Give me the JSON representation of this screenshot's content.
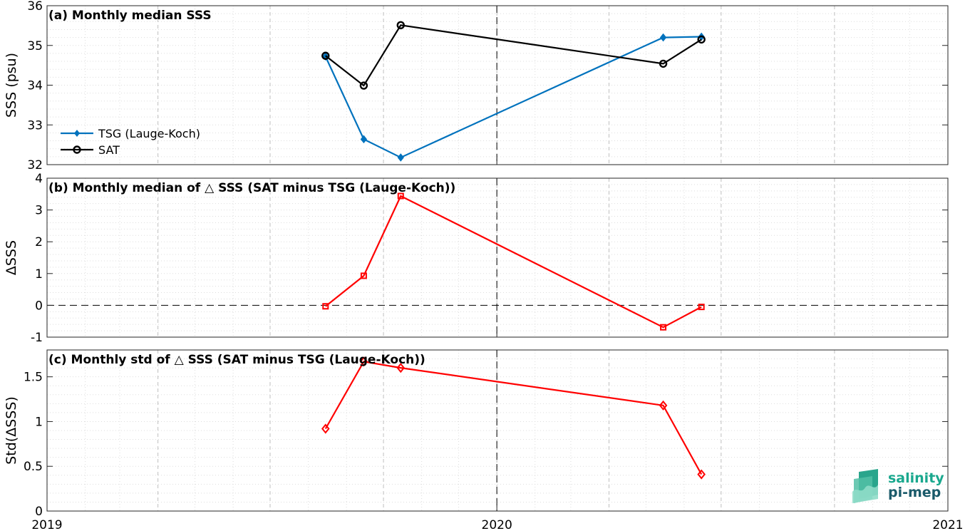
{
  "chart_data": [
    {
      "type": "line",
      "title": "(a) Monthly median SSS",
      "ylabel": "SSS (psu)",
      "ylim": [
        32,
        36
      ],
      "yticks": [
        "32",
        "33",
        "34",
        "35",
        "36"
      ],
      "xlim": [
        "2019-01-01",
        "2021-01-01"
      ],
      "grid": true,
      "legend_position": "lower-left",
      "series": [
        {
          "name": "TSG (Lauge-Koch)",
          "color": "#0072bd",
          "marker": "filled-diamond",
          "x": [
            "2019-08-15",
            "2019-09-15",
            "2019-10-15",
            "2020-05-15",
            "2020-06-15"
          ],
          "values": [
            34.72,
            32.64,
            32.18,
            35.2,
            35.22
          ]
        },
        {
          "name": "SAT",
          "color": "#000000",
          "marker": "circle",
          "x": [
            "2019-08-15",
            "2019-09-15",
            "2019-10-15",
            "2020-05-15",
            "2020-06-15"
          ],
          "values": [
            34.74,
            33.99,
            35.51,
            34.54,
            35.15
          ]
        }
      ]
    },
    {
      "type": "line",
      "title": "(b) Monthly median of △ SSS (SAT minus TSG (Lauge-Koch))",
      "ylabel": "ΔSSS",
      "ylim": [
        -1,
        4
      ],
      "yticks": [
        "-1",
        "0",
        "1",
        "2",
        "3",
        "4"
      ],
      "xlim": [
        "2019-01-01",
        "2021-01-01"
      ],
      "grid": true,
      "zero_line": true,
      "series": [
        {
          "color": "#ff0000",
          "marker": "square",
          "x": [
            "2019-08-15",
            "2019-09-15",
            "2019-10-15",
            "2020-05-15",
            "2020-06-15"
          ],
          "values": [
            -0.03,
            0.93,
            3.44,
            -0.69,
            -0.05
          ]
        }
      ]
    },
    {
      "type": "line",
      "title": "(c) Monthly std of △ SSS (SAT minus TSG (Lauge-Koch))",
      "ylabel": "Std(ΔSSS)",
      "ylim": [
        0,
        1.8
      ],
      "yticks": [
        "0",
        "0.5",
        "1",
        "1.5"
      ],
      "xlim": [
        "2019-01-01",
        "2021-01-01"
      ],
      "xticks": [
        "2019",
        "2020",
        "2021"
      ],
      "grid": true,
      "series": [
        {
          "color": "#ff0000",
          "marker": "diamond",
          "x": [
            "2019-08-15",
            "2019-09-15",
            "2019-10-15",
            "2020-05-15",
            "2020-06-15"
          ],
          "values": [
            0.92,
            1.67,
            1.6,
            1.18,
            0.41
          ]
        }
      ]
    }
  ],
  "logo": {
    "line1": "salinity",
    "line2": "pi-mep",
    "color1": "#1aa88e",
    "color2": "#1a5a6a"
  },
  "colors": {
    "axis": "#262626",
    "grid": "#dddddd",
    "vline": "#000000"
  }
}
